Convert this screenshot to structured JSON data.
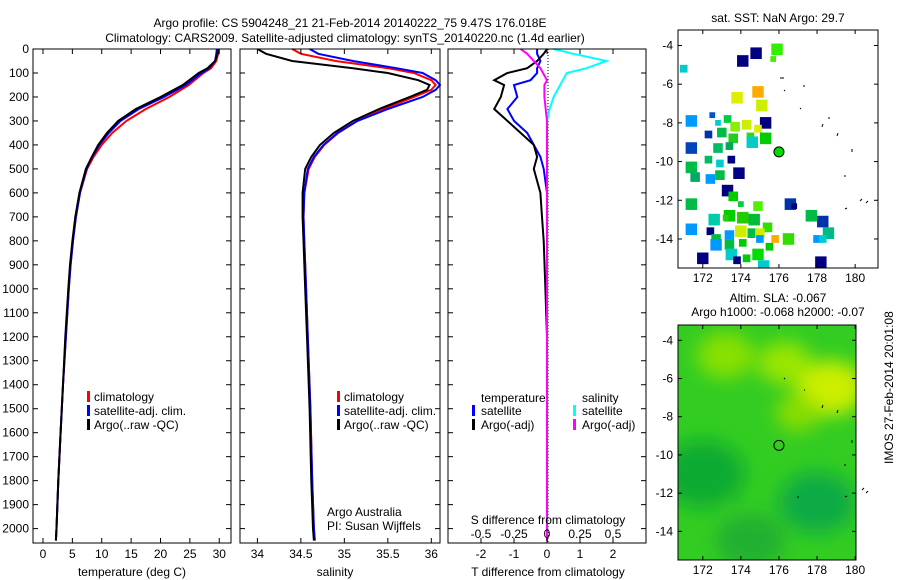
{
  "title_line1": "Argo profile: CS 5904248_21 21-Feb-2014 20140222_75 9.47S 176.018E",
  "title_line2": "Climatology: CARS2009. Satellite-adjusted climatology: synTS_20140220.nc (1.4d earlier)",
  "imos_stamp": "IMOS 27-Feb-2014 20:01:08",
  "colors": {
    "climatology": "#ff0000",
    "satellite": "#0000ff",
    "argo": "#000000",
    "s_satellite": "#00ffff",
    "s_argo": "#ff00ff"
  },
  "chart_data": [
    {
      "type": "line",
      "name": "temperature-profile",
      "xlabel": "temperature (deg C)",
      "ylabel": "depth",
      "xlim": [
        -1.7,
        32
      ],
      "ylim": [
        0,
        2060
      ],
      "xticks": [
        0,
        5,
        10,
        15,
        20,
        25,
        30
      ],
      "yticks": [
        0,
        100,
        200,
        300,
        400,
        500,
        600,
        700,
        800,
        900,
        1000,
        1100,
        1200,
        1300,
        1400,
        1500,
        1600,
        1700,
        1800,
        1900,
        2000
      ],
      "depth": [
        0,
        20,
        50,
        80,
        100,
        150,
        200,
        250,
        300,
        350,
        400,
        450,
        500,
        600,
        700,
        800,
        900,
        1000,
        1200,
        1400,
        1600,
        1800,
        2000,
        2050
      ],
      "series": [
        {
          "name": "climatology",
          "color": "#ff0000",
          "values": [
            29.9,
            29.8,
            29.5,
            28.6,
            27.3,
            24.8,
            21.5,
            17.5,
            14.2,
            11.8,
            10.0,
            8.6,
            7.5,
            6.3,
            5.6,
            5.1,
            4.7,
            4.4,
            3.9,
            3.4,
            3.0,
            2.6,
            2.3,
            2.2
          ]
        },
        {
          "name": "satellite-adj. clim.",
          "color": "#0000ff",
          "values": [
            29.6,
            29.5,
            29.3,
            28.3,
            27.0,
            24.3,
            20.6,
            16.3,
            13.2,
            11.2,
            9.6,
            8.4,
            7.4,
            6.3,
            5.6,
            5.1,
            4.7,
            4.4,
            3.9,
            3.4,
            3.0,
            2.6,
            2.3,
            2.2
          ]
        },
        {
          "name": "Argo(..raw -QC)",
          "color": "#000000",
          "values": [
            29.8,
            29.7,
            29.3,
            28.0,
            26.5,
            23.8,
            20.0,
            15.8,
            12.8,
            10.9,
            9.4,
            8.3,
            7.3,
            6.2,
            5.5,
            5.0,
            4.6,
            4.3,
            3.8,
            3.4,
            3.0,
            2.6,
            2.3,
            2.2
          ]
        }
      ],
      "legend": [
        "climatology",
        "satellite-adj. clim.",
        "Argo(..raw -QC)"
      ]
    },
    {
      "type": "line",
      "name": "salinity-profile",
      "xlabel": "salinity",
      "xlim": [
        33.8,
        36.1
      ],
      "ylim": [
        0,
        2060
      ],
      "xticks": [
        34,
        34.5,
        35,
        35.5,
        36
      ],
      "xticklabels": [
        "34",
        "34.5",
        "35",
        "35.5",
        "36"
      ],
      "depth": [
        0,
        20,
        50,
        80,
        100,
        130,
        150,
        170,
        200,
        250,
        300,
        350,
        400,
        450,
        500,
        600,
        700,
        800,
        1000,
        1200,
        1500,
        1800,
        2000,
        2050
      ],
      "series": [
        {
          "name": "climatology",
          "color": "#ff0000",
          "values": [
            34.4,
            34.5,
            34.9,
            35.5,
            35.8,
            36.0,
            36.05,
            36.0,
            35.8,
            35.45,
            35.15,
            34.93,
            34.77,
            34.66,
            34.59,
            34.54,
            34.53,
            34.54,
            34.56,
            34.58,
            34.61,
            34.63,
            34.65,
            34.66
          ]
        },
        {
          "name": "satellite-adj. clim.",
          "color": "#0000ff",
          "values": [
            34.6,
            34.7,
            35.1,
            35.6,
            35.9,
            36.05,
            36.1,
            36.05,
            35.9,
            35.5,
            35.15,
            34.92,
            34.76,
            34.65,
            34.58,
            34.54,
            34.53,
            34.54,
            34.56,
            34.58,
            34.61,
            34.63,
            34.65,
            34.66
          ]
        },
        {
          "name": "Argo(..raw -QC)",
          "color": "#000000",
          "values": [
            34.0,
            34.1,
            34.4,
            35.1,
            35.5,
            35.85,
            35.98,
            35.95,
            35.75,
            35.4,
            35.1,
            34.88,
            34.72,
            34.62,
            34.55,
            34.52,
            34.52,
            34.53,
            34.55,
            34.57,
            34.6,
            34.62,
            34.64,
            34.65
          ]
        }
      ],
      "legend": [
        "climatology",
        "satellite-adj. clim.",
        "Argo(..raw -QC)"
      ],
      "annotation": [
        "Argo Australia",
        "PI: Susan Wijffels"
      ]
    },
    {
      "type": "line",
      "name": "difference-profile",
      "xlabel": "T difference from climatology",
      "xlabel_top": "S difference from climatology",
      "xlim": [
        -3,
        3
      ],
      "ylim": [
        0,
        2060
      ],
      "xticks": [
        -2,
        -1,
        0,
        1,
        2
      ],
      "sticks": [
        -0.5,
        -0.25,
        0,
        0.25,
        0.5
      ],
      "sticklabels": [
        "-0.5",
        "-0.25",
        "0",
        "0.25",
        "0.5"
      ],
      "s_scale": 4,
      "depth": [
        0,
        20,
        50,
        80,
        100,
        130,
        150,
        200,
        250,
        300,
        350,
        400,
        450,
        500,
        600,
        700,
        800,
        1000,
        1200,
        1500,
        1800,
        2000,
        2050
      ],
      "series": [
        {
          "name": "temperature satellite",
          "kind": "T",
          "color": "#0000ff",
          "values": [
            -0.3,
            -0.3,
            -0.2,
            -0.3,
            -0.3,
            -0.5,
            -1.0,
            -0.9,
            -1.2,
            -1.0,
            -0.6,
            -0.4,
            -0.2,
            -0.1,
            0.0,
            0.0,
            0.0,
            0.0,
            0.0,
            0.0,
            0.0,
            0.0,
            0.0
          ]
        },
        {
          "name": "temperature Argo(-adj)",
          "kind": "T",
          "color": "#000000",
          "values": [
            0.0,
            -0.1,
            -0.3,
            -0.6,
            -1.2,
            -1.6,
            -1.3,
            -1.4,
            -1.6,
            -1.2,
            -0.8,
            -0.4,
            -0.3,
            -0.4,
            -0.2,
            -0.15,
            -0.1,
            -0.05,
            0.0,
            0.0,
            0.0,
            0.0,
            0.0
          ]
        },
        {
          "name": "salinity satellite",
          "kind": "S",
          "color": "#00ffff",
          "values": [
            0.05,
            0.2,
            0.45,
            0.3,
            0.15,
            0.12,
            0.1,
            0.05,
            0.02,
            0.0,
            0.0,
            0.0,
            0.0,
            0.0,
            0.0,
            0.0,
            0.0,
            0.0,
            0.0,
            0.0,
            0.0,
            0.0,
            0.0
          ]
        },
        {
          "name": "salinity Argo(-adj)",
          "kind": "S",
          "color": "#ff00ff",
          "values": [
            -0.2,
            -0.15,
            -0.1,
            -0.05,
            -0.03,
            0.0,
            -0.02,
            -0.02,
            -0.01,
            0.0,
            0.0,
            0.0,
            0.0,
            0.0,
            0.0,
            0.0,
            0.0,
            0.0,
            0.0,
            0.0,
            0.0,
            0.0,
            0.0
          ]
        }
      ],
      "legend": {
        "temp_header": "temperature",
        "sal_header": "salinity",
        "items": [
          "satellite",
          "Argo(-adj)",
          "satellite",
          "Argo(-adj)"
        ]
      }
    },
    {
      "type": "scatter",
      "name": "sst-map",
      "title": "sat. SST: NaN Argo: 29.7",
      "xlim": [
        170.7,
        181.2
      ],
      "ylim": [
        -15.5,
        -3.2
      ],
      "xticks": [
        172,
        174,
        176,
        178,
        180
      ],
      "yticks": [
        -4,
        -6,
        -8,
        -10,
        -12,
        -14
      ],
      "argo_position": [
        176.0,
        -9.5
      ],
      "argo_color": "#00dd00",
      "cells": [
        [
          174.8,
          -4.4,
          0.6,
          "#000080"
        ],
        [
          174.1,
          -4.8,
          0.6,
          "#000080"
        ],
        [
          175.9,
          -4.2,
          0.6,
          "#33ee00"
        ],
        [
          175.7,
          -4.7,
          0.3,
          "#44ee00"
        ],
        [
          171.0,
          -5.2,
          0.4,
          "#00cccc"
        ],
        [
          173.8,
          -6.7,
          0.6,
          "#ddee00"
        ],
        [
          174.9,
          -6.4,
          0.6,
          "#ffaa00"
        ],
        [
          175.1,
          -7.1,
          0.6,
          "#ccee00"
        ],
        [
          175.3,
          -8.0,
          0.6,
          "#000080"
        ],
        [
          171.4,
          -7.9,
          0.6,
          "#0099ff"
        ],
        [
          172.5,
          -7.6,
          0.3,
          "#0055cc"
        ],
        [
          172.8,
          -8.0,
          0.3,
          "#00cccc"
        ],
        [
          173.3,
          -7.8,
          0.4,
          "#00cc44"
        ],
        [
          173.7,
          -8.2,
          0.5,
          "#88ee00"
        ],
        [
          174.3,
          -8.1,
          0.5,
          "#ccee00"
        ],
        [
          174.9,
          -8.3,
          0.4,
          "#ddee00"
        ],
        [
          173.0,
          -8.5,
          0.5,
          "#00bb44"
        ],
        [
          172.3,
          -8.6,
          0.4,
          "#0033aa"
        ],
        [
          173.6,
          -8.8,
          0.5,
          "#22cc22"
        ],
        [
          174.5,
          -8.7,
          0.4,
          "#33dd00"
        ],
        [
          174.6,
          -9.0,
          0.6,
          "#00cccc"
        ],
        [
          175.3,
          -8.8,
          0.6,
          "#00cc00"
        ],
        [
          171.4,
          -9.3,
          0.6,
          "#0044bb"
        ],
        [
          172.8,
          -9.3,
          0.5,
          "#00bb66"
        ],
        [
          173.4,
          -9.2,
          0.4,
          "#00aa55"
        ],
        [
          172.3,
          -9.9,
          0.4,
          "#00bb66"
        ],
        [
          172.9,
          -10.1,
          0.4,
          "#00cccc"
        ],
        [
          173.5,
          -9.9,
          0.4,
          "#000080"
        ],
        [
          171.4,
          -10.3,
          0.6,
          "#00bb44"
        ],
        [
          171.6,
          -10.8,
          0.5,
          "#00aa66"
        ],
        [
          172.4,
          -10.9,
          0.5,
          "#0099ff"
        ],
        [
          172.9,
          -10.7,
          0.5,
          "#00bb44"
        ],
        [
          173.9,
          -10.6,
          0.6,
          "#000080"
        ],
        [
          173.3,
          -11.5,
          0.6,
          "#000080"
        ],
        [
          173.6,
          -11.8,
          0.5,
          "#00cc00"
        ],
        [
          171.4,
          -12.2,
          0.6,
          "#00bb44"
        ],
        [
          176.6,
          -12.2,
          0.6,
          "#0033aa"
        ],
        [
          176.8,
          -12.3,
          0.3,
          "#000080"
        ],
        [
          172.6,
          -13.0,
          0.6,
          "#00ccaa"
        ],
        [
          173.4,
          -12.8,
          0.6,
          "#00cc00"
        ],
        [
          174.1,
          -12.9,
          0.6,
          "#22cc00"
        ],
        [
          174.9,
          -12.3,
          0.5,
          "#55ee00"
        ],
        [
          174.7,
          -13.0,
          0.6,
          "#00bb33"
        ],
        [
          175.4,
          -13.4,
          0.5,
          "#33dd00"
        ],
        [
          171.4,
          -13.5,
          0.6,
          "#0099ff"
        ],
        [
          172.4,
          -13.6,
          0.4,
          "#000080"
        ],
        [
          172.7,
          -14.0,
          0.5,
          "#00bb44"
        ],
        [
          173.4,
          -13.8,
          0.5,
          "#0099ff"
        ],
        [
          174.0,
          -13.6,
          0.6,
          "#ccee00"
        ],
        [
          174.6,
          -13.7,
          0.5,
          "#00bb44"
        ],
        [
          175.0,
          -13.7,
          0.5,
          "#ccee00"
        ],
        [
          172.7,
          -14.3,
          0.6,
          "#0099ff"
        ],
        [
          173.4,
          -14.3,
          0.5,
          "#00bb44"
        ],
        [
          174.1,
          -14.2,
          0.4,
          "#00cc00"
        ],
        [
          175.0,
          -14.0,
          0.4,
          "#0099ff"
        ],
        [
          175.8,
          -14.0,
          0.4,
          "#ffaa00"
        ],
        [
          175.5,
          -14.4,
          0.4,
          "#00cc00"
        ],
        [
          176.5,
          -14.0,
          0.6,
          "#33dd00"
        ],
        [
          177.7,
          -12.8,
          0.6,
          "#00bb44"
        ],
        [
          178.3,
          -13.1,
          0.6,
          "#0033aa"
        ],
        [
          178.6,
          -13.7,
          0.6,
          "#00bb88"
        ],
        [
          178.0,
          -14.0,
          0.4,
          "#0099ff"
        ],
        [
          178.3,
          -14.0,
          0.4,
          "#00cccc"
        ],
        [
          172.0,
          -15.0,
          0.6,
          "#000080"
        ],
        [
          173.5,
          -14.8,
          0.6,
          "#00cccc"
        ],
        [
          173.8,
          -15.1,
          0.4,
          "#000080"
        ],
        [
          174.3,
          -15.0,
          0.4,
          "#00cc00"
        ],
        [
          174.9,
          -14.8,
          0.6,
          "#00dd00"
        ],
        [
          175.2,
          -15.4,
          0.6,
          "#00cccc"
        ],
        [
          178.2,
          -15.2,
          0.6,
          "#000080"
        ],
        [
          174.0,
          -12.2,
          0.3,
          "#00cc44"
        ],
        [
          173.2,
          -12.9,
          0.3,
          "#33cc00"
        ]
      ]
    },
    {
      "type": "heatmap",
      "name": "sla-map",
      "title_line1": "Altim. SLA: -0.067",
      "title_line2": "Argo h1000: -0.068 h2000: -0.07",
      "xlim": [
        170.7,
        181.2
      ],
      "ylim": [
        -15.5,
        -3.2
      ],
      "xticks": [
        172,
        174,
        176,
        178,
        180
      ],
      "yticks": [
        -4,
        -6,
        -8,
        -10,
        -12,
        -14
      ],
      "argo_position": [
        176.0,
        -9.5
      ],
      "background_color": "#33cc22",
      "highs": [
        [
          178.7,
          -6.5,
          1.8,
          "#ccee00"
        ],
        [
          176.3,
          -5.2,
          1.4,
          "#99e600"
        ],
        [
          173.2,
          -4.8,
          1.5,
          "#88e000"
        ],
        [
          177.0,
          -7.8,
          1.2,
          "#88dd00"
        ]
      ],
      "lows": [
        [
          172.0,
          -11.0,
          2.2,
          "#11aa33"
        ],
        [
          178.0,
          -12.5,
          2.0,
          "#11aa44"
        ],
        [
          174.5,
          -14.5,
          1.8,
          "#22b030"
        ]
      ]
    }
  ]
}
